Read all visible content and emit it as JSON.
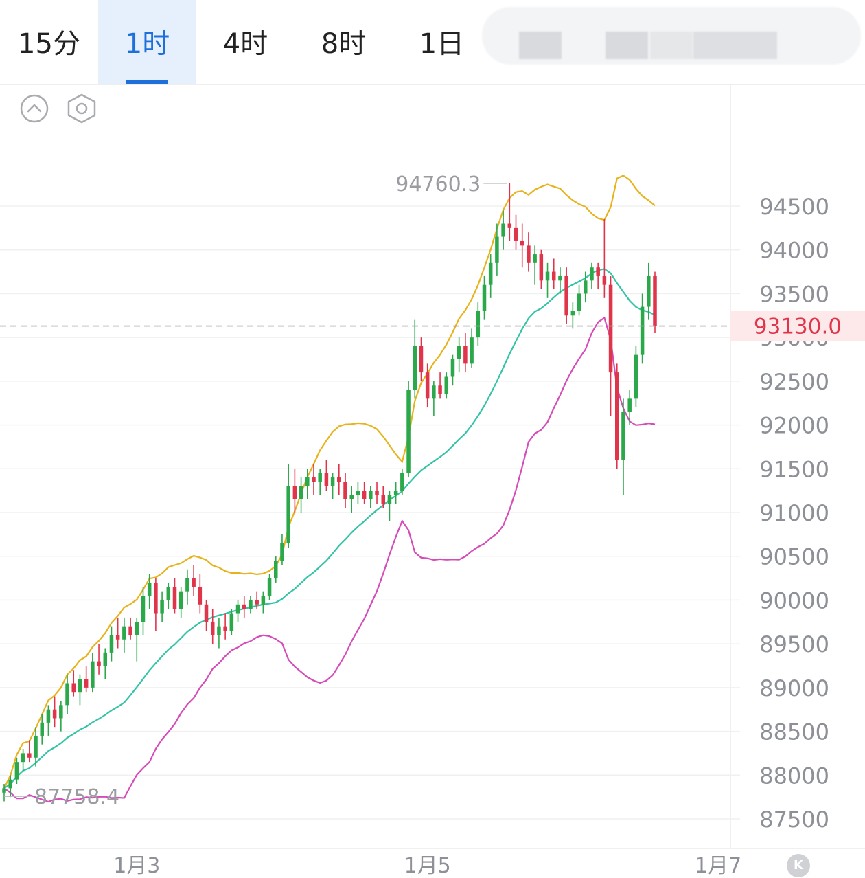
{
  "tabs": [
    {
      "label": "15分",
      "active": false
    },
    {
      "label": "1时",
      "active": true
    },
    {
      "label": "4时",
      "active": false
    },
    {
      "label": "8时",
      "active": false
    },
    {
      "label": "1日",
      "active": false
    }
  ],
  "toolbar": {
    "collapse_icon": "chevron-up-circle-icon",
    "settings_icon": "hexagon-settings-icon"
  },
  "k_button": {
    "label": "K",
    "icon": "k-logo-icon"
  },
  "colors": {
    "up": "#2ba84a",
    "down": "#e0344a",
    "boll_upper": "#e7b21a",
    "boll_middle": "#33c3a6",
    "boll_lower": "#d54bb8",
    "active_tab": "#1e6fd9",
    "price_label_bg": "#fde8ea"
  },
  "chart_data": {
    "type": "candlestick",
    "title": "",
    "interval": "1时",
    "ylim": [
      87200,
      95150
    ],
    "y_ticks": [
      "94500",
      "94000",
      "93500",
      "93000",
      "92500",
      "92000",
      "91500",
      "91000",
      "90500",
      "90000",
      "89500",
      "89000",
      "88500",
      "88000",
      "87500"
    ],
    "x_ticks": [
      {
        "label": "1月3",
        "index": 21
      },
      {
        "label": "1月5",
        "index": 67
      },
      {
        "label": "1月7",
        "index": 113
      }
    ],
    "current_price": "93130.0",
    "max_label": "94760.3",
    "min_label": "87758.4",
    "grid": "horizontal",
    "candles": [
      [
        87800,
        87900,
        87700,
        87850
      ],
      [
        87850,
        88000,
        87750,
        87950
      ],
      [
        87950,
        88200,
        87900,
        88150
      ],
      [
        88150,
        88300,
        88050,
        88250
      ],
      [
        88250,
        88400,
        88150,
        88200
      ],
      [
        88200,
        88550,
        88100,
        88450
      ],
      [
        88450,
        88700,
        88350,
        88600
      ],
      [
        88600,
        88800,
        88450,
        88750
      ],
      [
        88750,
        88900,
        88550,
        88650
      ],
      [
        88650,
        88850,
        88500,
        88800
      ],
      [
        88800,
        89150,
        88700,
        89050
      ],
      [
        89050,
        89200,
        88900,
        88950
      ],
      [
        88950,
        89150,
        88800,
        89100
      ],
      [
        89100,
        89250,
        88950,
        89000
      ],
      [
        89000,
        89400,
        88950,
        89300
      ],
      [
        89300,
        89500,
        89150,
        89250
      ],
      [
        89250,
        89450,
        89100,
        89400
      ],
      [
        89400,
        89700,
        89300,
        89600
      ],
      [
        89600,
        89800,
        89450,
        89550
      ],
      [
        89550,
        89800,
        89400,
        89700
      ],
      [
        89700,
        89800,
        89550,
        89600
      ],
      [
        89600,
        89800,
        89300,
        89750
      ],
      [
        89750,
        90150,
        89600,
        90050
      ],
      [
        90050,
        90300,
        89900,
        90200
      ],
      [
        90200,
        90250,
        89650,
        89850
      ],
      [
        89850,
        90100,
        89750,
        90000
      ],
      [
        90000,
        90200,
        89900,
        90150
      ],
      [
        90150,
        90250,
        89850,
        89900
      ],
      [
        89900,
        90150,
        89800,
        90100
      ],
      [
        90100,
        90350,
        89950,
        90250
      ],
      [
        90250,
        90400,
        90050,
        90150
      ],
      [
        90150,
        90300,
        89850,
        89950
      ],
      [
        89950,
        90000,
        89650,
        89750
      ],
      [
        89750,
        89900,
        89500,
        89600
      ],
      [
        89600,
        89800,
        89450,
        89700
      ],
      [
        89700,
        89850,
        89550,
        89650
      ],
      [
        89650,
        89900,
        89600,
        89850
      ],
      [
        89850,
        90000,
        89750,
        89950
      ],
      [
        89950,
        90050,
        89800,
        89900
      ],
      [
        89900,
        90050,
        89850,
        90000
      ],
      [
        90000,
        90100,
        89900,
        89950
      ],
      [
        89950,
        90100,
        89850,
        90050
      ],
      [
        90050,
        90300,
        90000,
        90250
      ],
      [
        90250,
        90500,
        90200,
        90450
      ],
      [
        90450,
        90750,
        90400,
        90650
      ],
      [
        90650,
        91550,
        90600,
        91300
      ],
      [
        91300,
        91500,
        91000,
        91150
      ],
      [
        91150,
        91400,
        91000,
        91300
      ],
      [
        91300,
        91500,
        91150,
        91400
      ],
      [
        91400,
        91550,
        91200,
        91350
      ],
      [
        91350,
        91500,
        91200,
        91450
      ],
      [
        91450,
        91600,
        91250,
        91300
      ],
      [
        91300,
        91450,
        91150,
        91400
      ],
      [
        91400,
        91550,
        91200,
        91350
      ],
      [
        91350,
        91450,
        91050,
        91150
      ],
      [
        91150,
        91300,
        91000,
        91200
      ],
      [
        91200,
        91350,
        91100,
        91250
      ],
      [
        91250,
        91350,
        91100,
        91150
      ],
      [
        91150,
        91300,
        91050,
        91250
      ],
      [
        91250,
        91350,
        91100,
        91200
      ],
      [
        91200,
        91300,
        91050,
        91100
      ],
      [
        91100,
        91250,
        90900,
        91200
      ],
      [
        91200,
        91350,
        91100,
        91250
      ],
      [
        91250,
        91500,
        91200,
        91450
      ],
      [
        91450,
        92500,
        91400,
        92400
      ],
      [
        92400,
        93200,
        92300,
        92900
      ],
      [
        92900,
        93000,
        92500,
        92600
      ],
      [
        92600,
        92700,
        92200,
        92300
      ],
      [
        92300,
        92500,
        92100,
        92450
      ],
      [
        92450,
        92600,
        92300,
        92350
      ],
      [
        92350,
        92600,
        92300,
        92550
      ],
      [
        92550,
        92800,
        92450,
        92750
      ],
      [
        92750,
        93000,
        92600,
        92900
      ],
      [
        92900,
        93050,
        92600,
        92700
      ],
      [
        92700,
        93100,
        92650,
        93000
      ],
      [
        93000,
        93400,
        92900,
        93300
      ],
      [
        93300,
        93700,
        93200,
        93600
      ],
      [
        93600,
        93950,
        93450,
        93850
      ],
      [
        93850,
        94300,
        93700,
        94150
      ],
      [
        94150,
        94450,
        94000,
        94300
      ],
      [
        94300,
        94760,
        94100,
        94250
      ],
      [
        94250,
        94400,
        94000,
        94100
      ],
      [
        94100,
        94300,
        93800,
        94050
      ],
      [
        94050,
        94200,
        93750,
        93850
      ],
      [
        93850,
        94050,
        93600,
        93950
      ],
      [
        93950,
        94000,
        93550,
        93650
      ],
      [
        93650,
        93850,
        93450,
        93750
      ],
      [
        93750,
        93900,
        93550,
        93650
      ],
      [
        93650,
        93800,
        93500,
        93700
      ],
      [
        93700,
        93800,
        93150,
        93250
      ],
      [
        93250,
        93400,
        93100,
        93300
      ],
      [
        93300,
        93600,
        93250,
        93500
      ],
      [
        93500,
        93750,
        93400,
        93650
      ],
      [
        93650,
        93850,
        93550,
        93800
      ],
      [
        93800,
        93850,
        93550,
        93700
      ],
      [
        93700,
        94350,
        93450,
        93600
      ],
      [
        93600,
        93700,
        92100,
        92600
      ],
      [
        92600,
        92700,
        91500,
        91600
      ],
      [
        91600,
        92300,
        91200,
        92150
      ],
      [
        92150,
        92400,
        92000,
        92300
      ],
      [
        92300,
        92900,
        92200,
        92800
      ],
      [
        92800,
        93500,
        92700,
        93350
      ],
      [
        93350,
        93850,
        93200,
        93700
      ],
      [
        93700,
        93750,
        93050,
        93130
      ]
    ]
  }
}
